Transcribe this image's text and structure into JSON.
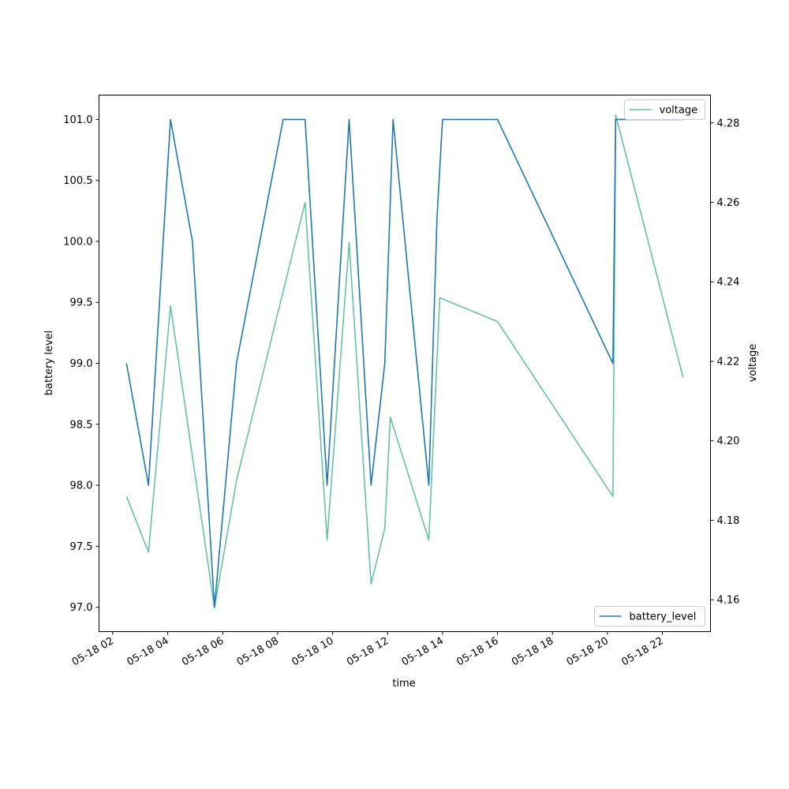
{
  "chart_data": {
    "type": "line",
    "title": "",
    "xlabel": "time",
    "ylabel_left": "battery level",
    "ylabel_right": "voltage",
    "x_ticks": [
      "05-18 02",
      "05-18 04",
      "05-18 06",
      "05-18 08",
      "05-18 10",
      "05-18 12",
      "05-18 14",
      "05-18 16",
      "05-18 18",
      "05-18 20",
      "05-18 22"
    ],
    "y_left_ticks": [
      "97.0",
      "97.5",
      "98.0",
      "98.5",
      "99.0",
      "99.5",
      "100.0",
      "100.5",
      "101.0"
    ],
    "y_right_ticks": [
      "4.16",
      "4.18",
      "4.20",
      "4.22",
      "4.24",
      "4.26",
      "4.28"
    ],
    "xlim": [
      "05-18 01:30",
      "05-18 23:45"
    ],
    "ylim_left": [
      96.8,
      101.2
    ],
    "ylim_right": [
      4.152,
      4.287
    ],
    "grid": false,
    "series": [
      {
        "name": "battery_level",
        "axis": "left",
        "color": "#1f77b4",
        "legend_loc": "lower-right",
        "x": [
          "05-18 02:30",
          "05-18 03:18",
          "05-18 04:06",
          "05-18 04:54",
          "05-18 05:42",
          "05-18 06:30",
          "05-18 08:12",
          "05-18 09:00",
          "05-18 09:48",
          "05-18 10:36",
          "05-18 11:24",
          "05-18 11:54",
          "05-18 12:12",
          "05-18 13:30",
          "05-18 13:48",
          "05-18 14:00",
          "05-18 16:00",
          "05-18 20:12",
          "05-18 20:18",
          "05-18 22:45"
        ],
        "y": [
          99.0,
          98.0,
          101.0,
          100.0,
          97.0,
          99.0,
          101.0,
          101.0,
          98.0,
          101.0,
          98.0,
          99.0,
          101.0,
          98.0,
          100.2,
          101.0,
          101.0,
          99.0,
          101.0,
          101.0
        ]
      },
      {
        "name": "voltage",
        "axis": "right",
        "color": "#66c2a5",
        "legend_loc": "upper-right",
        "x": [
          "05-18 02:30",
          "05-18 03:18",
          "05-18 04:06",
          "05-18 04:54",
          "05-18 05:42",
          "05-18 06:30",
          "05-18 09:00",
          "05-18 09:48",
          "05-18 10:36",
          "05-18 11:24",
          "05-18 11:54",
          "05-18 12:06",
          "05-18 13:30",
          "05-18 13:54",
          "05-18 16:00",
          "05-18 20:12",
          "05-18 20:18",
          "05-18 22:45"
        ],
        "y": [
          4.186,
          4.172,
          4.234,
          4.196,
          4.158,
          4.19,
          4.26,
          4.175,
          4.25,
          4.164,
          4.178,
          4.206,
          4.175,
          4.236,
          4.23,
          4.186,
          4.282,
          4.216
        ]
      }
    ]
  }
}
